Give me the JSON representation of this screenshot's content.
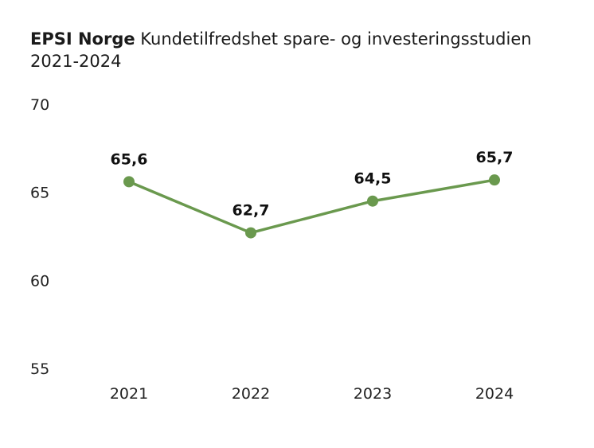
{
  "chart_data": {
    "type": "line",
    "title_bold": "EPSI Norge",
    "title_rest": " Kundetilfredshet spare- og investeringsstudien",
    "subtitle": "2021-2024",
    "categories": [
      "2021",
      "2022",
      "2023",
      "2024"
    ],
    "series": [
      {
        "values": [
          65.6,
          62.7,
          64.5,
          65.7
        ],
        "color": "#6a994e"
      }
    ],
    "data_labels": [
      "65,6",
      "62,7",
      "64,5",
      "65,7"
    ],
    "y_ticks": [
      55,
      60,
      65,
      70
    ],
    "y_tick_labels": [
      "55",
      "60",
      "65",
      "70"
    ],
    "ylim": [
      55,
      70
    ],
    "grid": false,
    "legend": "none"
  }
}
